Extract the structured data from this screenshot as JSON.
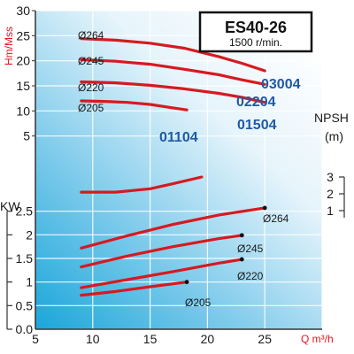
{
  "chart_data": {
    "type": "line",
    "title": "ES40-26",
    "subtitle": "1500 r/min.",
    "xlabel": "Q m³/h",
    "ylabel": "Hm/Mss",
    "xlim": [
      5,
      30
    ],
    "ylim": [
      0,
      30
    ],
    "x_ticks": [
      "5",
      "10",
      "15",
      "20",
      "25"
    ],
    "y_ticks": [
      "5",
      "10",
      "15",
      "20",
      "25",
      "30"
    ],
    "curve_color": "#d71920",
    "head_curves": [
      {
        "diameter": "Ø264",
        "model": "03004",
        "x": [
          9,
          12,
          15,
          18,
          21,
          23,
          25
        ],
        "y": [
          24.4,
          24.1,
          23.5,
          22.5,
          20.8,
          19.5,
          18.0
        ]
      },
      {
        "diameter": "Ø245",
        "model": "02204",
        "x": [
          9,
          12,
          15,
          18,
          21,
          23,
          25
        ],
        "y": [
          20.2,
          19.9,
          19.3,
          18.3,
          17.2,
          16.2,
          15.3
        ]
      },
      {
        "diameter": "Ø220",
        "model": "01504",
        "x": [
          9,
          12,
          15,
          18,
          21,
          23,
          25
        ],
        "y": [
          15.8,
          15.6,
          15.1,
          14.4,
          13.5,
          12.7,
          11.7
        ]
      },
      {
        "diameter": "Ø205",
        "model": "01104",
        "x": [
          9,
          11,
          13,
          15,
          17,
          18.2
        ],
        "y": [
          12.0,
          11.9,
          11.7,
          11.3,
          10.6,
          10.2
        ]
      }
    ],
    "npsh": {
      "label": "NPSH",
      "unit": "(m)",
      "ticks": [
        "1",
        "2",
        "3"
      ],
      "curve": {
        "x": [
          9,
          12,
          15,
          17,
          19.5
        ],
        "y": [
          2.1,
          2.1,
          2.3,
          2.6,
          3.0
        ]
      }
    },
    "power": {
      "label": "KW",
      "ylim": [
        0,
        3
      ],
      "ticks": [
        "0.0",
        "0.5",
        "1",
        "1.5",
        "2",
        "2.5"
      ],
      "curves": [
        {
          "diameter": "Ø264",
          "x": [
            9,
            13,
            17,
            21,
            25
          ],
          "y": [
            1.72,
            1.98,
            2.22,
            2.42,
            2.57
          ]
        },
        {
          "diameter": "Ø245",
          "x": [
            9,
            13,
            17,
            21,
            23
          ],
          "y": [
            1.32,
            1.55,
            1.75,
            1.92,
            1.99
          ]
        },
        {
          "diameter": "Ø220",
          "x": [
            9,
            13,
            17,
            21,
            23
          ],
          "y": [
            0.88,
            1.05,
            1.22,
            1.4,
            1.48
          ]
        },
        {
          "diameter": "Ø205",
          "x": [
            9,
            12,
            15,
            18.2
          ],
          "y": [
            0.72,
            0.8,
            0.9,
            1.0
          ]
        }
      ]
    }
  }
}
